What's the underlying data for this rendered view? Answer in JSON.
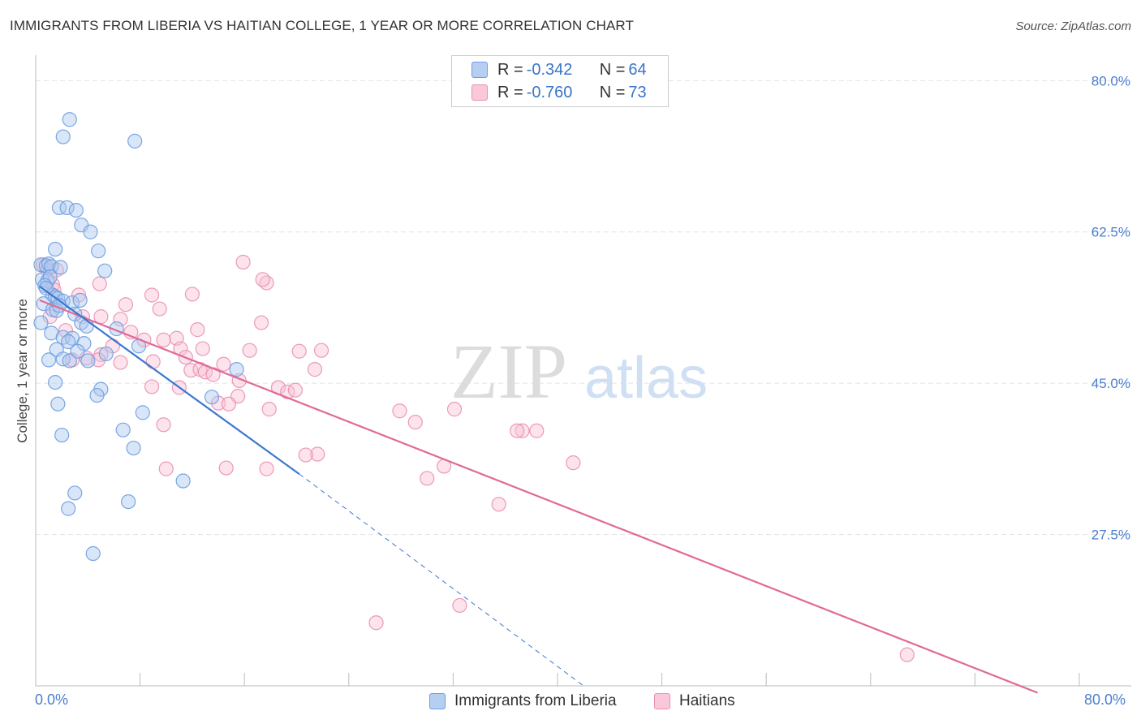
{
  "title": "IMMIGRANTS FROM LIBERIA VS HAITIAN COLLEGE, 1 YEAR OR MORE CORRELATION CHART",
  "source": "Source: ZipAtlas.com",
  "watermark": {
    "zip": "ZIP",
    "atlas": "atlas"
  },
  "colors": {
    "blue_fill": "#aac8f0",
    "blue_stroke": "#6d9de0",
    "blue_line": "#3a78d0",
    "pink_fill": "#f8c0d4",
    "pink_stroke": "#e990b0",
    "pink_line": "#e06a98",
    "grid": "#e3e3e3",
    "tick_text": "#4a7fcf"
  },
  "legend": {
    "rows": [
      {
        "r_label": "R = ",
        "r_value": "-0.342",
        "n_label": "N = ",
        "n_value": "64"
      },
      {
        "r_label": "R = ",
        "r_value": "-0.760",
        "n_label": "N = ",
        "n_value": "73"
      }
    ]
  },
  "bottom_legend": {
    "series1": "Immigrants from Liberia",
    "series2": "Haitians"
  },
  "chart_data": {
    "type": "scatter",
    "title": "IMMIGRANTS FROM LIBERIA VS HAITIAN COLLEGE, 1 YEAR OR MORE CORRELATION CHART",
    "xlabel": "",
    "ylabel": "College, 1 year or more",
    "xlim": [
      0,
      80
    ],
    "ylim": [
      10,
      82
    ],
    "x_tick_labels": [
      "0.0%",
      "80.0%"
    ],
    "y_ticks": [
      80.0,
      62.5,
      45.0,
      27.5
    ],
    "y_tick_labels": [
      "80.0%",
      "62.5%",
      "45.0%",
      "27.5%"
    ],
    "grid": true,
    "legend_position": "top-center",
    "series": [
      {
        "name": "Immigrants from Liberia",
        "r": -0.342,
        "n": 64,
        "trend": {
          "x0": 0.3,
          "y0": 56.2,
          "x1": 20.2,
          "y1": 34.5,
          "dash_x1": 42.0,
          "dash_y1": 10.0
        },
        "points": [
          [
            2.6,
            75.5
          ],
          [
            2.1,
            73.5
          ],
          [
            7.6,
            73.0
          ],
          [
            1.8,
            65.3
          ],
          [
            2.4,
            65.3
          ],
          [
            3.1,
            65.0
          ],
          [
            3.5,
            63.3
          ],
          [
            4.2,
            62.5
          ],
          [
            1.5,
            60.5
          ],
          [
            4.8,
            60.3
          ],
          [
            5.3,
            58.0
          ],
          [
            0.4,
            58.7
          ],
          [
            0.8,
            58.6
          ],
          [
            1.0,
            58.8
          ],
          [
            1.2,
            58.5
          ],
          [
            1.9,
            58.4
          ],
          [
            0.5,
            57.0
          ],
          [
            0.9,
            56.8
          ],
          [
            1.1,
            57.3
          ],
          [
            0.7,
            56.3
          ],
          [
            1.3,
            55.2
          ],
          [
            1.5,
            55.0
          ],
          [
            1.7,
            54.8
          ],
          [
            2.1,
            54.5
          ],
          [
            0.6,
            54.2
          ],
          [
            2.8,
            54.3
          ],
          [
            3.4,
            54.6
          ],
          [
            1.3,
            53.5
          ],
          [
            1.6,
            53.4
          ],
          [
            3.0,
            53.0
          ],
          [
            0.4,
            52.0
          ],
          [
            3.5,
            52.0
          ],
          [
            6.2,
            51.3
          ],
          [
            1.2,
            50.8
          ],
          [
            2.1,
            50.3
          ],
          [
            2.8,
            50.2
          ],
          [
            2.5,
            49.8
          ],
          [
            3.7,
            49.6
          ],
          [
            7.9,
            49.3
          ],
          [
            1.6,
            48.9
          ],
          [
            3.2,
            48.7
          ],
          [
            5.4,
            48.4
          ],
          [
            2.1,
            47.8
          ],
          [
            1.0,
            47.7
          ],
          [
            2.6,
            47.6
          ],
          [
            4.0,
            47.6
          ],
          [
            15.4,
            46.6
          ],
          [
            1.5,
            45.1
          ],
          [
            5.0,
            44.3
          ],
          [
            4.7,
            43.6
          ],
          [
            13.5,
            43.4
          ],
          [
            1.7,
            42.6
          ],
          [
            8.2,
            41.6
          ],
          [
            6.7,
            39.6
          ],
          [
            2.0,
            39.0
          ],
          [
            7.5,
            37.5
          ],
          [
            11.3,
            33.7
          ],
          [
            3.0,
            32.3
          ],
          [
            7.1,
            31.3
          ],
          [
            2.5,
            30.5
          ],
          [
            4.4,
            25.3
          ],
          [
            0.8,
            56.0
          ],
          [
            1.8,
            54.0
          ],
          [
            3.9,
            51.6
          ]
        ]
      },
      {
        "name": "Haitians",
        "r": -0.76,
        "n": 73,
        "trend": {
          "x0": 0.3,
          "y0": 54.6,
          "x1": 76.8,
          "y1": 9.2
        },
        "points": [
          [
            0.6,
            58.7
          ],
          [
            0.9,
            58.1
          ],
          [
            1.3,
            56.4
          ],
          [
            15.9,
            59.0
          ],
          [
            17.7,
            56.6
          ],
          [
            4.9,
            56.5
          ],
          [
            1.4,
            55.8
          ],
          [
            8.9,
            55.2
          ],
          [
            12.0,
            55.3
          ],
          [
            3.3,
            55.2
          ],
          [
            6.9,
            54.1
          ],
          [
            9.5,
            53.6
          ],
          [
            5.0,
            52.7
          ],
          [
            3.6,
            52.7
          ],
          [
            1.1,
            52.7
          ],
          [
            6.5,
            52.4
          ],
          [
            17.3,
            52.0
          ],
          [
            12.4,
            51.2
          ],
          [
            2.3,
            51.1
          ],
          [
            7.3,
            50.9
          ],
          [
            10.8,
            50.2
          ],
          [
            8.3,
            50.0
          ],
          [
            9.8,
            50.0
          ],
          [
            11.1,
            49.0
          ],
          [
            16.4,
            48.8
          ],
          [
            12.8,
            49.0
          ],
          [
            5.9,
            49.3
          ],
          [
            5.0,
            48.3
          ],
          [
            21.9,
            48.8
          ],
          [
            11.5,
            48.0
          ],
          [
            20.2,
            48.7
          ],
          [
            3.9,
            47.9
          ],
          [
            4.8,
            47.7
          ],
          [
            2.8,
            47.7
          ],
          [
            6.5,
            47.4
          ],
          [
            14.4,
            47.2
          ],
          [
            9.0,
            47.5
          ],
          [
            11.9,
            46.5
          ],
          [
            12.6,
            46.6
          ],
          [
            13.0,
            46.3
          ],
          [
            21.4,
            46.6
          ],
          [
            13.6,
            46.0
          ],
          [
            15.6,
            45.3
          ],
          [
            8.9,
            44.6
          ],
          [
            11.0,
            44.5
          ],
          [
            18.6,
            44.5
          ],
          [
            19.3,
            44.0
          ],
          [
            19.9,
            44.2
          ],
          [
            15.5,
            43.5
          ],
          [
            14.0,
            42.7
          ],
          [
            14.8,
            42.6
          ],
          [
            17.9,
            42.0
          ],
          [
            27.9,
            41.8
          ],
          [
            32.1,
            42.0
          ],
          [
            29.1,
            40.5
          ],
          [
            9.8,
            40.2
          ],
          [
            37.3,
            39.5
          ],
          [
            36.9,
            39.5
          ],
          [
            38.4,
            39.5
          ],
          [
            21.6,
            36.8
          ],
          [
            20.7,
            36.7
          ],
          [
            31.3,
            35.4
          ],
          [
            14.6,
            35.2
          ],
          [
            17.7,
            35.1
          ],
          [
            10.0,
            35.1
          ],
          [
            30.0,
            34.0
          ],
          [
            41.2,
            35.8
          ],
          [
            35.5,
            31.0
          ],
          [
            32.5,
            19.3
          ],
          [
            26.1,
            17.3
          ],
          [
            66.8,
            13.6
          ],
          [
            17.4,
            57.0
          ],
          [
            1.6,
            58.1
          ]
        ]
      }
    ]
  }
}
